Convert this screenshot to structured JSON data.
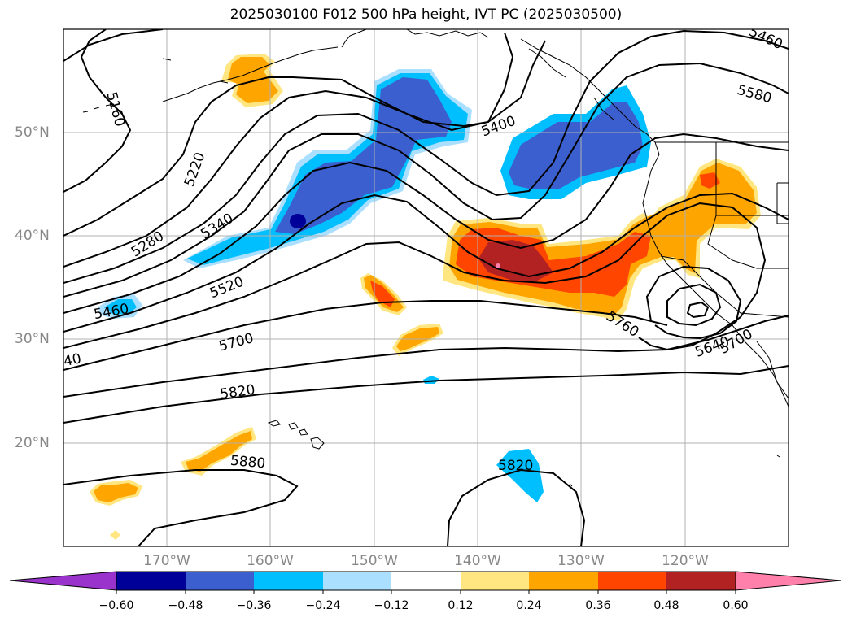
{
  "title": "2025030100 F012 500 hPa height, IVT PC (2025030500)",
  "map": {
    "projection": "PlateCarree",
    "lon_range": [
      -180,
      -110
    ],
    "lat_range": [
      10,
      60
    ],
    "lat_ticks": [
      "20°N",
      "30°N",
      "40°N",
      "50°N"
    ],
    "lon_ticks": [
      "170°W",
      "160°W",
      "150°W",
      "140°W",
      "130°W",
      "120°W"
    ],
    "gridlines": true,
    "coastlines": true
  },
  "contours": {
    "field": "500 hPa height",
    "color": "#000000",
    "labels": [
      "5460",
      "5580",
      "5400",
      "5160",
      "5220",
      "5340",
      "5280",
      "5520",
      "5460",
      "5700",
      "40",
      "5820",
      "5760",
      "5640",
      "5700",
      "5880",
      "5820"
    ]
  },
  "shading": {
    "field": "IVT PC",
    "negative_color": "#3b5fcf",
    "positive_color": "#ff4500"
  },
  "colorbar": {
    "extend": "both",
    "colors": [
      "#9933cc",
      "#000099",
      "#3b5fcf",
      "#00bfff",
      "#aadfff",
      "#ffffff",
      "#ffe680",
      "#ffa500",
      "#ff4500",
      "#b22222",
      "#ff80aa"
    ],
    "tick_labels": [
      "−0.60",
      "−0.48",
      "−0.36",
      "−0.24",
      "−0.12",
      "0.12",
      "0.24",
      "0.36",
      "0.48",
      "0.60"
    ]
  }
}
